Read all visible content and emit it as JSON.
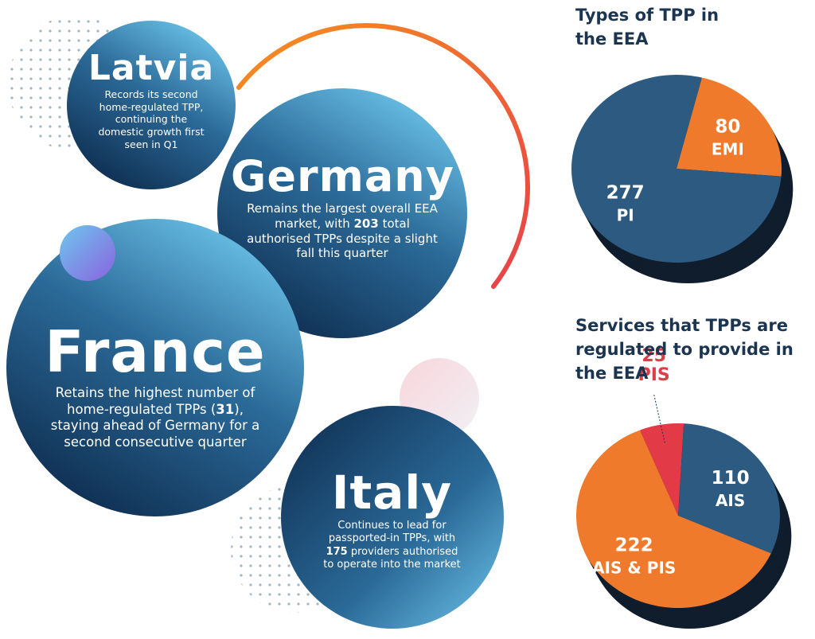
{
  "highlights": [
    {
      "country": "Latvia",
      "text": [
        "Records its second home-regulated TPP, continuing the domestic growth first seen in Q1"
      ]
    },
    {
      "country": "Germany",
      "text": [
        "Remains the largest overall EEA market, with ",
        "203",
        " total authorised TPPs despite a slight fall this quarter"
      ]
    },
    {
      "country": "France",
      "text": [
        "Retains the highest number of home-regulated TPPs (",
        "31",
        "), staying ahead of Germany for a second consecutive quarter"
      ]
    },
    {
      "country": "Italy",
      "text": [
        "Continues to lead for passported-in TPPs, with ",
        "175",
        " providers authorised to operate into the market"
      ]
    }
  ],
  "chart_data": [
    {
      "type": "pie",
      "title": "Types of TPP in the EEA",
      "categories": [
        "EMI",
        "PI"
      ],
      "values": [
        80,
        277
      ],
      "colors": [
        "#f07a2c",
        "#2d5a80"
      ]
    },
    {
      "type": "pie",
      "title": "Services that TPPs are regulated to provide in the EEA",
      "categories": [
        "PIS",
        "AIS",
        "AIS & PIS"
      ],
      "values": [
        25,
        110,
        222
      ],
      "colors": [
        "#e23a46",
        "#2d5a80",
        "#f07a2c"
      ]
    }
  ]
}
